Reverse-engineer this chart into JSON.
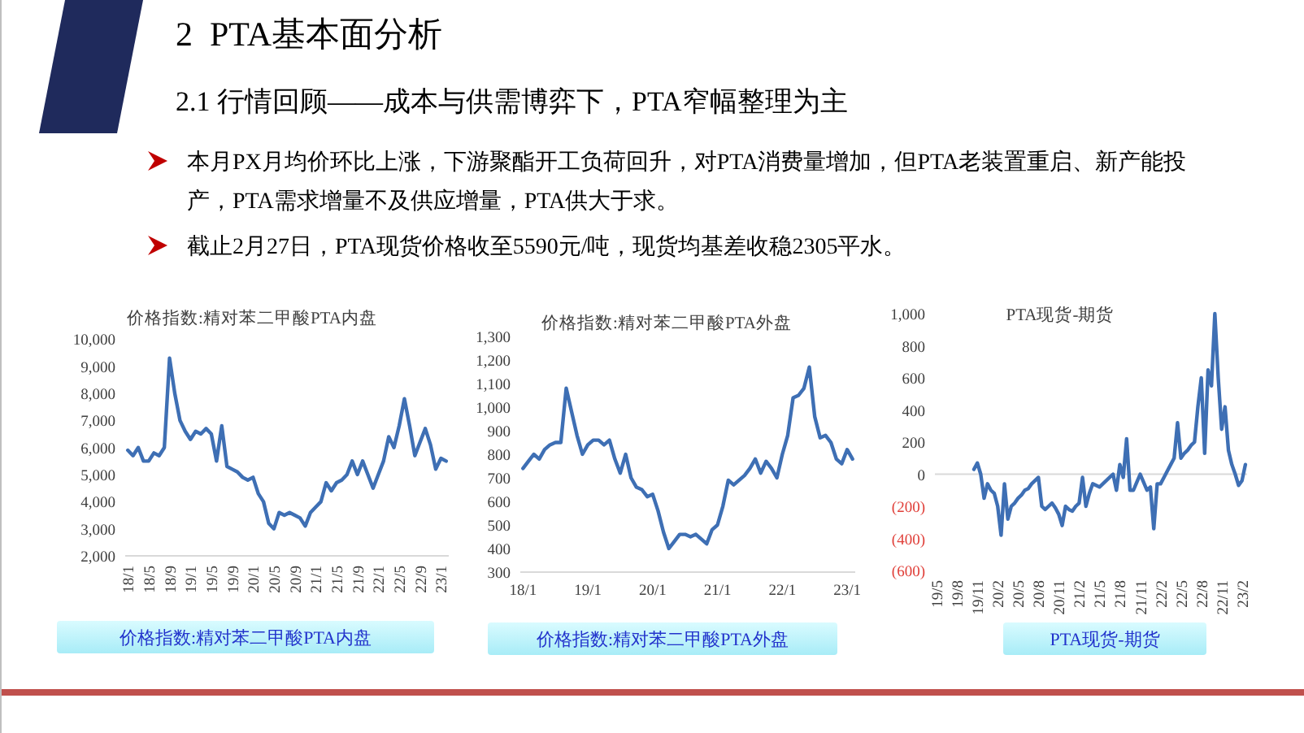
{
  "chart_data": [
    {
      "type": "other",
      "title": "2  PTA基本面分析",
      "subtitle": "2.1 行情回顾——成本与供需博弈下，PTA窄幅整理为主",
      "annotations": [
        "本月PX月均价环比上涨，下游聚酯开工负荷回升，对PTA消费量增加，但PTA老装置重启、新产能投产，PTA需求增量不及供应增量，PTA供大于求。",
        "截止2月27日，PTA现货价格收至5590元/吨，现货均基差收稳2305平水。"
      ]
    },
    {
      "type": "line",
      "title": "价格指数:精对苯二甲酸PTA内盘",
      "annotations": [
        "价格指数:精对苯二甲酸PTA内盘"
      ],
      "categories": [
        "18/1",
        null,
        null,
        null,
        "18/5",
        null,
        null,
        null,
        "18/9",
        null,
        null,
        null,
        "19/1",
        null,
        null,
        null,
        "19/5",
        null,
        null,
        null,
        "19/9",
        null,
        null,
        null,
        "20/1",
        null,
        null,
        null,
        "20/5",
        null,
        null,
        null,
        "20/9",
        null,
        null,
        null,
        "21/1",
        null,
        null,
        null,
        "21/5",
        null,
        null,
        null,
        "21/9",
        null,
        null,
        null,
        "22/1",
        null,
        null,
        null,
        "22/5",
        null,
        null,
        null,
        "22/9",
        null,
        null,
        null,
        "23/1",
        null
      ],
      "series": [
        {
          "color": "#3e6fb4",
          "values": [
            5900,
            5700,
            6000,
            5500,
            5500,
            5800,
            5700,
            6000,
            9300,
            8000,
            7000,
            6600,
            6300,
            6600,
            6500,
            6700,
            6500,
            5500,
            6800,
            5300,
            5200,
            5100,
            4900,
            4800,
            4900,
            4300,
            4000,
            3200,
            3000,
            3600,
            3500,
            3600,
            3500,
            3400,
            3100,
            3600,
            3800,
            4000,
            4700,
            4400,
            4700,
            4800,
            5000,
            5500,
            5000,
            5500,
            5000,
            4500,
            5000,
            5500,
            6400,
            6000,
            6800,
            7800,
            6800,
            5700,
            6200,
            6700,
            6100,
            5200,
            5600,
            5500
          ]
        }
      ],
      "ylim": [
        2000,
        10000
      ],
      "yticks": [
        {
          "value": 2000,
          "label": "2,000"
        },
        {
          "value": 3000,
          "label": "3,000"
        },
        {
          "value": 4000,
          "label": "4,000"
        },
        {
          "value": 5000,
          "label": "5,000"
        },
        {
          "value": 6000,
          "label": "6,000"
        },
        {
          "value": 7000,
          "label": "7,000"
        },
        {
          "value": 8000,
          "label": "8,000"
        },
        {
          "value": 9000,
          "label": "9,000"
        },
        {
          "value": 10000,
          "label": "10,000"
        }
      ]
    },
    {
      "type": "line",
      "title": "价格指数:精对苯二甲酸PTA外盘",
      "annotations": [
        "价格指数:精对苯二甲酸PTA外盘"
      ],
      "categories": [
        "18/1",
        null,
        null,
        null,
        null,
        null,
        null,
        null,
        null,
        null,
        null,
        null,
        "19/1",
        null,
        null,
        null,
        null,
        null,
        null,
        null,
        null,
        null,
        null,
        null,
        "20/1",
        null,
        null,
        null,
        null,
        null,
        null,
        null,
        null,
        null,
        null,
        null,
        "21/1",
        null,
        null,
        null,
        null,
        null,
        null,
        null,
        null,
        null,
        null,
        null,
        "22/1",
        null,
        null,
        null,
        null,
        null,
        null,
        null,
        null,
        null,
        null,
        null,
        "23/1",
        null
      ],
      "series": [
        {
          "color": "#3e6fb4",
          "values": [
            740,
            770,
            800,
            780,
            820,
            840,
            850,
            850,
            1080,
            980,
            880,
            800,
            840,
            860,
            860,
            840,
            860,
            780,
            720,
            800,
            700,
            660,
            650,
            620,
            630,
            560,
            470,
            400,
            430,
            460,
            460,
            450,
            460,
            440,
            420,
            480,
            500,
            580,
            690,
            670,
            690,
            710,
            740,
            780,
            720,
            770,
            740,
            700,
            800,
            880,
            1040,
            1050,
            1080,
            1170,
            960,
            870,
            880,
            850,
            780,
            760,
            820,
            780
          ]
        }
      ],
      "ylim": [
        300,
        1300
      ],
      "yticks": [
        300,
        400,
        500,
        600,
        700,
        800,
        900,
        {
          "value": 1000,
          "label": "1,000"
        },
        {
          "value": 1100,
          "label": "1,100"
        },
        {
          "value": 1200,
          "label": "1,200"
        },
        {
          "value": 1300,
          "label": "1,300"
        }
      ]
    },
    {
      "type": "line",
      "title": "PTA现货-期货",
      "annotations": [
        "PTA现货-期货"
      ],
      "categories": [
        "19/5",
        null,
        null,
        null,
        null,
        null,
        "19/8",
        null,
        null,
        null,
        null,
        null,
        "19/11",
        null,
        null,
        null,
        null,
        null,
        "20/2",
        null,
        null,
        null,
        null,
        null,
        "20/5",
        null,
        null,
        null,
        null,
        null,
        "20/8",
        null,
        null,
        null,
        null,
        null,
        "20/11",
        null,
        null,
        null,
        null,
        null,
        "21/2",
        null,
        null,
        null,
        null,
        null,
        "21/5",
        null,
        null,
        null,
        null,
        null,
        "21/8",
        null,
        null,
        null,
        null,
        null,
        "21/11",
        null,
        null,
        null,
        null,
        null,
        "22/2",
        null,
        null,
        null,
        null,
        null,
        "22/5",
        null,
        null,
        null,
        null,
        null,
        "22/8",
        null,
        null,
        null,
        null,
        null,
        "22/11",
        null,
        null,
        null,
        null,
        null,
        "23/2",
        null
      ],
      "series": [
        {
          "color": "#3e6fb4",
          "values": [
            null,
            null,
            null,
            null,
            null,
            null,
            null,
            null,
            null,
            null,
            null,
            30,
            70,
            0,
            -150,
            -60,
            -100,
            -120,
            -200,
            -380,
            -60,
            -280,
            -200,
            -180,
            -150,
            -130,
            -100,
            -90,
            -60,
            -40,
            -20,
            -200,
            -220,
            -200,
            -180,
            -210,
            -250,
            -320,
            -200,
            -220,
            -230,
            -200,
            -180,
            -20,
            -200,
            -120,
            -60,
            -70,
            -80,
            -60,
            -40,
            -20,
            0,
            -100,
            60,
            -20,
            220,
            -100,
            -100,
            -50,
            0,
            -50,
            -100,
            -80,
            -340,
            -60,
            -60,
            -20,
            20,
            60,
            100,
            320,
            100,
            130,
            150,
            180,
            200,
            420,
            600,
            130,
            650,
            550,
            1000,
            600,
            280,
            420,
            150,
            60,
            0,
            -70,
            -40,
            60
          ]
        }
      ],
      "ylim": [
        -600,
        1000
      ],
      "yticks": [
        {
          "value": -600,
          "label": "(600)"
        },
        {
          "value": -400,
          "label": "(400)"
        },
        {
          "value": -200,
          "label": "(200)"
        },
        0,
        200,
        400,
        600,
        800,
        {
          "value": 1000,
          "label": "1,000"
        }
      ],
      "ref_lines": [
        {
          "axis": "y",
          "value": 0,
          "color": "#d9d9d9"
        }
      ]
    }
  ]
}
